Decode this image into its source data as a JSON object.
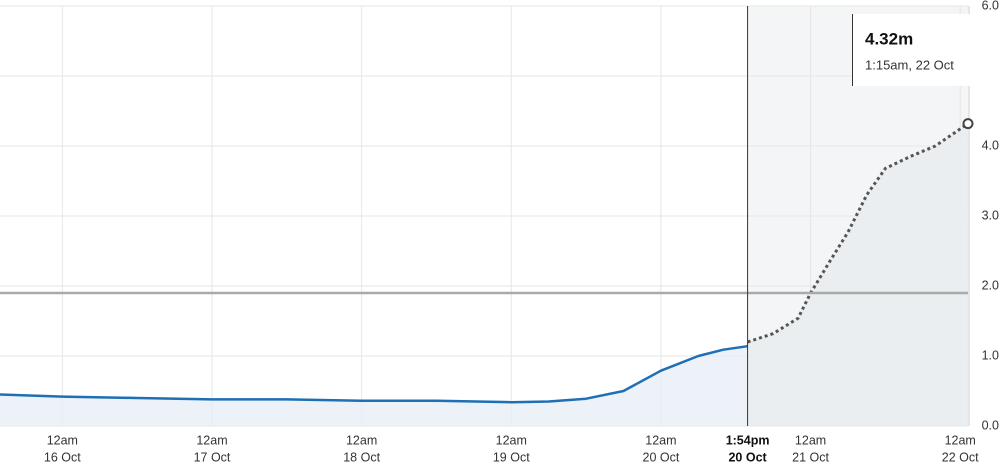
{
  "chart_data": {
    "type": "line",
    "xlim": [
      "15 Oct 14:00",
      "22 Oct 01:15"
    ],
    "ylim": [
      0,
      6
    ],
    "yticks": [
      {
        "value": 0,
        "label": "0.0"
      },
      {
        "value": 1,
        "label": "1.0"
      },
      {
        "value": 2,
        "label": "2.0"
      },
      {
        "value": 3,
        "label": "3.0"
      },
      {
        "value": 4,
        "label": "4.0"
      },
      {
        "value": 5,
        "label": "5.0"
      },
      {
        "value": 6,
        "label": "6.0"
      }
    ],
    "xticks": [
      {
        "value": "16 Oct 00:00",
        "label": [
          "12am",
          "16 Oct"
        ]
      },
      {
        "value": "17 Oct 00:00",
        "label": [
          "12am",
          "17 Oct"
        ]
      },
      {
        "value": "18 Oct 00:00",
        "label": [
          "12am",
          "18 Oct"
        ]
      },
      {
        "value": "19 Oct 00:00",
        "label": [
          "12am",
          "19 Oct"
        ]
      },
      {
        "value": "20 Oct 00:00",
        "label": [
          "12am",
          "20 Oct"
        ]
      },
      {
        "value": "21 Oct 00:00",
        "label": [
          "12am",
          "21 Oct"
        ]
      },
      {
        "value": "22 Oct 00:00",
        "label": [
          "12am",
          "22 Oct"
        ]
      }
    ],
    "now": {
      "value": "20 Oct 13:54",
      "label": [
        "1:54pm",
        "20 Oct"
      ]
    },
    "reference_line": 1.9,
    "grid": true,
    "series": [
      {
        "color": "#1f6fb5",
        "style": "solid",
        "x": [
          "15 Oct 14:00",
          "16 Oct 00:00",
          "16 Oct 12:00",
          "17 Oct 00:00",
          "17 Oct 12:00",
          "18 Oct 00:00",
          "18 Oct 12:00",
          "19 Oct 00:00",
          "19 Oct 06:00",
          "19 Oct 12:00",
          "19 Oct 18:00",
          "20 Oct 00:00",
          "20 Oct 06:00",
          "20 Oct 10:00",
          "20 Oct 13:54"
        ],
        "values": [
          0.45,
          0.42,
          0.4,
          0.38,
          0.38,
          0.36,
          0.36,
          0.34,
          0.35,
          0.39,
          0.5,
          0.79,
          1.0,
          1.09,
          1.14
        ]
      },
      {
        "color": "#555555",
        "style": "dotted",
        "x": [
          "20 Oct 13:54",
          "20 Oct 18:00",
          "20 Oct 22:00",
          "21 Oct 00:00",
          "21 Oct 03:00",
          "21 Oct 06:00",
          "21 Oct 09:00",
          "21 Oct 12:00",
          "21 Oct 16:00",
          "21 Oct 20:00",
          "22 Oct 01:15"
        ],
        "values": [
          1.2,
          1.32,
          1.54,
          1.9,
          2.34,
          2.77,
          3.3,
          3.68,
          3.85,
          4.0,
          4.32
        ]
      }
    ],
    "tooltip": {
      "value_label": "4.32m",
      "time": "1:15am, 22 Oct"
    }
  }
}
